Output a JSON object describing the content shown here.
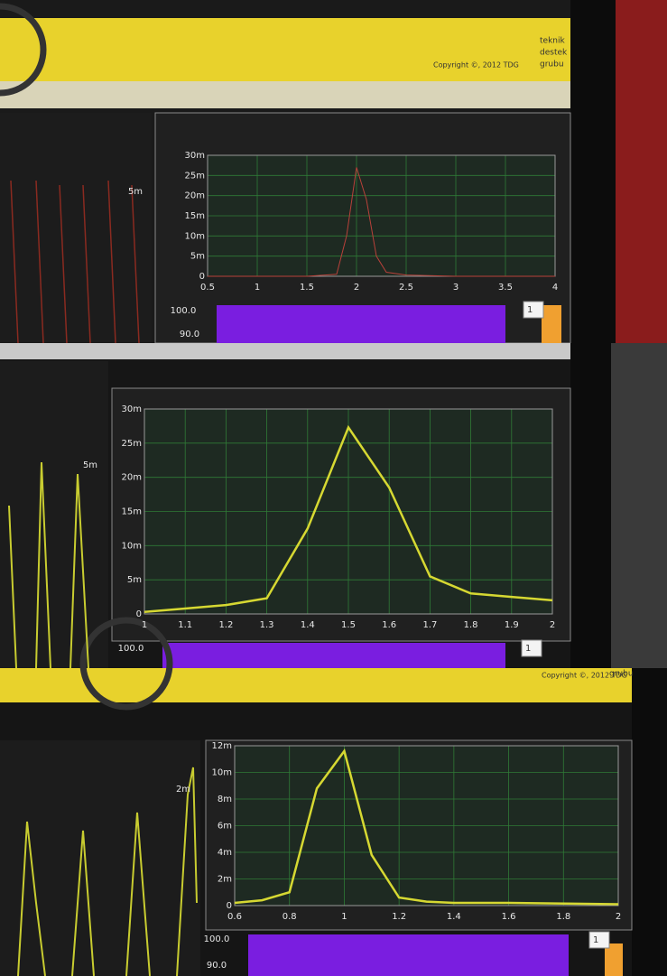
{
  "chart_data": [
    {
      "type": "line",
      "color": "#b8413a",
      "x": [
        0.5,
        1,
        1.5,
        1.8,
        1.9,
        2,
        2.1,
        2.2,
        2.3,
        2.5,
        3,
        3.5,
        4
      ],
      "values": [
        0,
        0,
        0,
        0.5,
        10,
        27,
        19,
        5,
        1,
        0.3,
        0,
        0,
        0
      ],
      "xlim": [
        0.5,
        4
      ],
      "xticks": [
        0.5,
        1,
        1.5,
        2,
        2.5,
        3,
        3.5,
        4
      ],
      "ylim": [
        0,
        30
      ],
      "yticks": [
        0,
        {
          "value": 5,
          "label": "5m"
        },
        {
          "value": 10,
          "label": "10m"
        },
        {
          "value": 15,
          "label": "15m"
        },
        {
          "value": 20,
          "label": "20m"
        },
        {
          "value": 25,
          "label": "25m"
        },
        {
          "value": 30,
          "label": "30m"
        }
      ],
      "grid": true
    },
    {
      "type": "line",
      "color": "#d6d832",
      "x": [
        1,
        1.1,
        1.2,
        1.3,
        1.4,
        1.5,
        1.6,
        1.7,
        1.8,
        1.9,
        2
      ],
      "values": [
        0.3,
        0.8,
        1.3,
        2.3,
        12.5,
        27.3,
        18.5,
        5.5,
        3,
        2.5,
        2
      ],
      "xlim": [
        1,
        2
      ],
      "xticks": [
        1,
        1.1,
        1.2,
        1.3,
        1.4,
        1.5,
        1.6,
        1.7,
        1.8,
        1.9,
        2
      ],
      "ylim": [
        0,
        30
      ],
      "yticks": [
        0,
        {
          "value": 5,
          "label": "5m"
        },
        {
          "value": 10,
          "label": "10m"
        },
        {
          "value": 15,
          "label": "15m"
        },
        {
          "value": 20,
          "label": "20m"
        },
        {
          "value": 25,
          "label": "25m"
        },
        {
          "value": 30,
          "label": "30m"
        }
      ],
      "grid": true
    },
    {
      "type": "line",
      "color": "#d6d832",
      "x": [
        0.6,
        0.7,
        0.8,
        0.9,
        1,
        1.1,
        1.2,
        1.3,
        1.4,
        1.6,
        1.8,
        2
      ],
      "values": [
        0.2,
        0.4,
        1,
        8.8,
        11.6,
        3.8,
        0.6,
        0.3,
        0.2,
        0.2,
        0.15,
        0.1
      ],
      "xlim": [
        0.6,
        2
      ],
      "xticks": [
        0.6,
        0.8,
        1,
        1.2,
        1.4,
        1.6,
        1.8,
        2
      ],
      "ylim": [
        0,
        12
      ],
      "yticks": [
        0,
        {
          "value": 2,
          "label": "2m"
        },
        {
          "value": 4,
          "label": "4m"
        },
        {
          "value": 6,
          "label": "6m"
        },
        {
          "value": 8,
          "label": "8m"
        },
        {
          "value": 10,
          "label": "10m"
        },
        {
          "value": 12,
          "label": "12m"
        }
      ],
      "grid": true
    }
  ],
  "panels": [
    {
      "copyright": "Copyright ©, 2012 TDG",
      "logo": [
        "teknik",
        "destek",
        "grubu"
      ],
      "side_label": "5m",
      "scale_top": "100.0",
      "scale_bottom": "90.0",
      "spin": "1"
    },
    {
      "side_label": "5m",
      "scale_top": "100.0",
      "spin": "1"
    },
    {
      "copyright": "Copyright ©, 2012 TDG",
      "logo": [
        "grubu"
      ],
      "side_label": "2m",
      "scale_top": "100.0",
      "scale_bottom": "90.0",
      "spin": "1"
    }
  ]
}
